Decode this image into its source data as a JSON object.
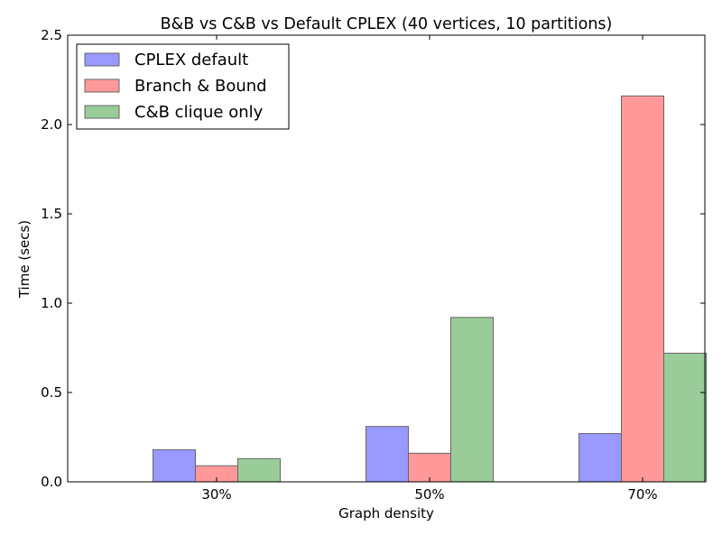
{
  "chart_data": {
    "type": "bar",
    "title": "B&B vs C&B vs Default CPLEX (40 vertices, 10 partitions)",
    "xlabel": "Graph density",
    "ylabel": "Time (secs)",
    "categories": [
      "30%",
      "50%",
      "70%"
    ],
    "ylim": [
      0,
      2.5
    ],
    "yticks": [
      "0.0",
      "0.5",
      "1.0",
      "1.5",
      "2.0",
      "2.5"
    ],
    "legend_position": "top-left",
    "grid": false,
    "series": [
      {
        "name": "CPLEX default",
        "color": "#9999ff",
        "values": [
          0.18,
          0.31,
          0.27
        ]
      },
      {
        "name": "Branch & Bound",
        "color": "#ff9999",
        "values": [
          0.09,
          0.16,
          2.16
        ]
      },
      {
        "name": "C&B clique only",
        "color": "#99cc99",
        "values": [
          0.13,
          0.92,
          0.72
        ]
      }
    ]
  }
}
